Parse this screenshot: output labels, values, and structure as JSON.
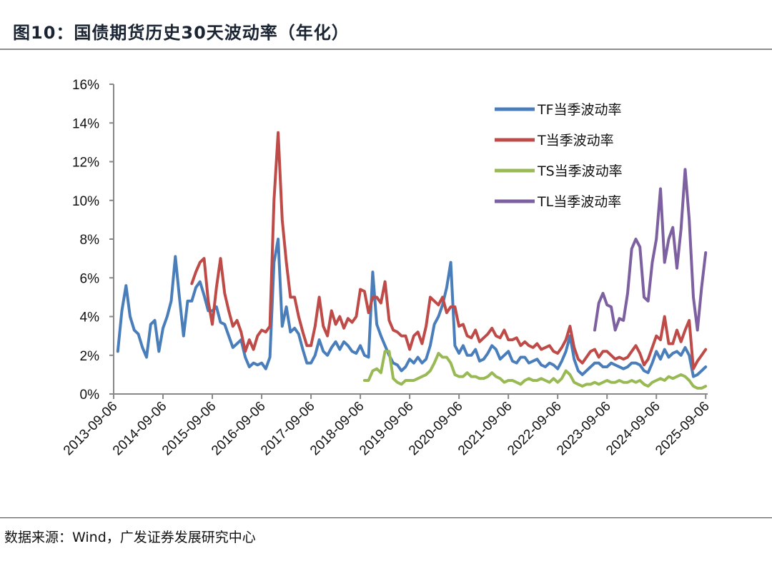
{
  "title": "图10：国债期货历史30天波动率（年化）",
  "source": "数据来源：Wind，广发证券发展研究中心",
  "chart_data": {
    "type": "line",
    "title": "国债期货历史30天波动率（年化）",
    "xlabel": "",
    "ylabel": "",
    "x_unit": "months since 2013-09-06",
    "xlim": [
      0,
      145
    ],
    "ylim": [
      0,
      16
    ],
    "y_ticks": [
      0,
      2,
      4,
      6,
      8,
      10,
      12,
      14,
      16
    ],
    "y_tick_labels": [
      "0%",
      "2%",
      "4%",
      "6%",
      "8%",
      "10%",
      "12%",
      "14%",
      "16%"
    ],
    "x_ticks": [
      0,
      12,
      24,
      36,
      48,
      60,
      72,
      84,
      96,
      108,
      120,
      132,
      144
    ],
    "x_tick_labels": [
      "2013-09-06",
      "2014-09-06",
      "2015-09-06",
      "2016-09-06",
      "2017-09-06",
      "2018-09-06",
      "2019-09-06",
      "2020-09-06",
      "2021-09-06",
      "2022-09-06",
      "2023-09-06",
      "2024-09-06",
      "2025-09-06"
    ],
    "grid": false,
    "legend_position": "top-right",
    "series": [
      {
        "name": "TF当季波动率",
        "color": "#4a7ebb",
        "start_month": 1,
        "values": [
          2.2,
          4.3,
          5.6,
          4.0,
          3.3,
          3.1,
          2.4,
          1.9,
          3.6,
          3.8,
          2.2,
          3.4,
          4.0,
          4.8,
          7.1,
          5.0,
          3.0,
          4.8,
          4.8,
          5.5,
          5.8,
          5.1,
          4.3,
          4.3,
          4.5,
          3.7,
          3.6,
          3.0,
          2.4,
          2.6,
          2.8,
          1.9,
          1.4,
          1.6,
          1.5,
          1.6,
          1.3,
          1.9,
          6.8,
          8.0,
          3.5,
          4.5,
          3.2,
          3.4,
          3.1,
          2.3,
          1.6,
          1.6,
          2.0,
          2.8,
          2.2,
          2.0,
          2.4,
          2.7,
          2.3,
          2.7,
          2.5,
          2.2,
          2.1,
          2.5,
          2.0,
          1.9,
          6.3,
          3.6,
          3.0,
          2.5,
          2.0,
          1.6,
          1.5,
          1.2,
          1.4,
          1.8,
          1.6,
          1.9,
          1.6,
          1.8,
          2.5,
          3.6,
          4.0,
          4.6,
          5.5,
          6.8,
          2.5,
          2.1,
          2.5,
          2.0,
          2.0,
          2.3,
          1.7,
          1.8,
          2.1,
          2.5,
          2.3,
          1.8,
          2.0,
          2.2,
          1.7,
          1.6,
          1.9,
          1.9,
          1.6,
          1.7,
          1.8,
          1.5,
          1.4,
          1.6,
          1.5,
          1.3,
          1.7,
          2.2,
          3.0,
          1.8,
          1.2,
          1.0,
          1.2,
          1.4,
          1.6,
          1.6,
          1.4,
          1.4,
          1.6,
          1.5,
          1.4,
          1.3,
          1.4,
          1.6,
          1.6,
          1.5,
          1.2,
          1.1,
          1.6,
          2.2,
          1.8,
          2.3,
          1.9,
          2.1,
          2.2,
          2.0,
          2.4,
          2.0,
          0.9,
          1.0,
          1.2,
          1.4
        ]
      },
      {
        "name": "T当季波动率",
        "color": "#be4b48",
        "start_month": 19,
        "values": [
          5.7,
          6.3,
          6.8,
          7.0,
          4.8,
          3.6,
          5.5,
          7.0,
          5.2,
          4.3,
          3.5,
          3.8,
          3.2,
          2.2,
          2.8,
          2.3,
          3.0,
          3.3,
          3.2,
          3.5,
          10.0,
          13.5,
          9.0,
          6.8,
          5.0,
          5.0,
          4.0,
          3.2,
          2.5,
          2.5,
          3.5,
          5.0,
          3.5,
          3.0,
          4.3,
          3.6,
          4.0,
          3.4,
          3.9,
          3.7,
          4.0,
          5.4,
          5.3,
          4.2,
          5.0,
          5.0,
          4.7,
          5.8,
          3.8,
          3.3,
          3.2,
          3.0,
          3.0,
          2.3,
          3.0,
          3.2,
          2.6,
          3.5,
          5.0,
          4.8,
          4.6,
          5.0,
          4.2,
          4.5,
          4.5,
          3.5,
          3.6,
          3.0,
          2.9,
          3.3,
          2.7,
          2.9,
          3.1,
          3.4,
          3.0,
          2.9,
          3.3,
          2.8,
          2.8,
          2.9,
          2.5,
          2.7,
          2.5,
          2.4,
          2.6,
          2.3,
          2.4,
          2.5,
          2.2,
          2.1,
          2.4,
          2.8,
          3.5,
          2.4,
          1.8,
          1.6,
          1.9,
          2.2,
          2.3,
          1.9,
          2.2,
          2.2,
          2.0,
          1.8,
          1.9,
          1.8,
          1.9,
          2.2,
          2.5,
          2.1,
          1.5,
          1.8,
          2.4,
          3.0,
          2.8,
          4.0,
          2.6,
          2.6,
          3.3,
          2.7,
          3.3,
          3.8,
          1.3,
          1.7,
          2.0,
          2.3
        ]
      },
      {
        "name": "TS当季波动率",
        "color": "#98b954",
        "start_month": 61,
        "values": [
          0.7,
          0.7,
          1.2,
          1.3,
          1.1,
          2.2,
          2.2,
          0.8,
          0.6,
          0.5,
          0.7,
          0.7,
          0.7,
          0.8,
          0.9,
          1.0,
          1.2,
          1.6,
          2.1,
          1.9,
          1.9,
          1.6,
          1.0,
          0.9,
          0.9,
          1.1,
          0.9,
          0.9,
          0.8,
          0.8,
          0.9,
          1.1,
          0.9,
          0.8,
          0.6,
          0.7,
          0.7,
          0.6,
          0.5,
          0.7,
          0.8,
          0.7,
          0.7,
          0.8,
          0.7,
          0.6,
          0.8,
          0.6,
          0.8,
          1.2,
          1.0,
          0.6,
          0.5,
          0.4,
          0.5,
          0.5,
          0.6,
          0.5,
          0.6,
          0.7,
          0.6,
          0.6,
          0.7,
          0.6,
          0.6,
          0.7,
          0.6,
          0.7,
          0.5,
          0.4,
          0.6,
          0.7,
          0.8,
          0.7,
          0.9,
          0.8,
          0.9,
          1.0,
          0.9,
          0.7,
          0.4,
          0.3,
          0.3,
          0.4
        ]
      },
      {
        "name": "TL当季波动率",
        "color": "#7d60a0",
        "start_month": 117,
        "values": [
          3.3,
          4.7,
          5.2,
          4.6,
          4.5,
          3.3,
          3.9,
          3.8,
          5.2,
          7.5,
          8.0,
          7.6,
          5.0,
          4.8,
          6.8,
          8.0,
          10.6,
          6.8,
          8.0,
          8.6,
          6.5,
          8.5,
          11.6,
          9.0,
          5.0,
          3.3,
          5.5,
          7.3
        ]
      }
    ]
  }
}
